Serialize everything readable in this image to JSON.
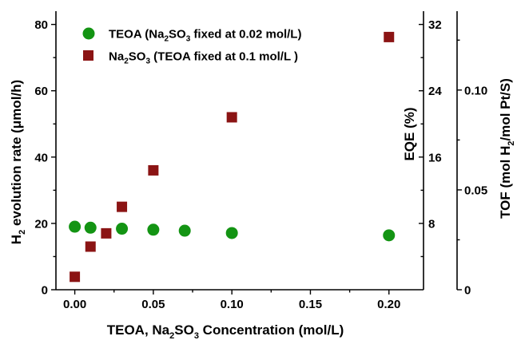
{
  "chart_data": {
    "type": "scatter",
    "xlabel": {
      "base": "TEOA, Na",
      "sub1": "2",
      "mid": "SO",
      "sub2": "3",
      "end": " Concentration (mol/L)"
    },
    "ylabel_left": {
      "base": "H",
      "sub": "2",
      "end": " evolution rate (μmol/h)"
    },
    "ylabel_right_inner": "EQE (%)",
    "ylabel_right_outer": {
      "base": "TOF (mol H",
      "sub": "2",
      "end": "/mol Pt/S)"
    },
    "xlim": [
      -0.012,
      0.222
    ],
    "ylim_left": [
      0,
      84
    ],
    "ylim_eqe": [
      0,
      33.6
    ],
    "ylim_tof": [
      0,
      0.1395
    ],
    "x_ticks": [
      "0.00",
      "0.05",
      "0.10",
      "0.15",
      "0.20"
    ],
    "x_tick_values": [
      0,
      0.05,
      0.1,
      0.15,
      0.2
    ],
    "y_left_ticks": [
      "0",
      "20",
      "40",
      "60",
      "80"
    ],
    "y_left_tick_values": [
      0,
      20,
      40,
      60,
      80
    ],
    "y_eqe_ticks": [
      "8",
      "16",
      "24",
      "32"
    ],
    "y_eqe_tick_values": [
      8,
      16,
      24,
      32
    ],
    "y_tof_ticks": [
      "0",
      "0.05",
      "0.10"
    ],
    "y_tof_tick_values": [
      0,
      0.05,
      0.1
    ],
    "legend_position": "top-left",
    "series": [
      {
        "name": {
          "base": "TEOA (Na",
          "sub1": "2",
          "mid": "SO",
          "sub2": "3",
          "end": " fixed at 0.02 mol/L)"
        },
        "marker": "circle",
        "color": "#139413",
        "x": [
          0,
          0.01,
          0.03,
          0.05,
          0.07,
          0.1,
          0.2
        ],
        "y": [
          19,
          18.7,
          18.4,
          18.1,
          17.8,
          17.1,
          16.4
        ]
      },
      {
        "name": {
          "base": "Na",
          "sub1": "2",
          "mid": "SO",
          "sub2": "3",
          "end": " (TEOA fixed at 0.1 mol/L )"
        },
        "marker": "square",
        "color": "#8b1414",
        "x": [
          0,
          0.01,
          0.02,
          0.03,
          0.05,
          0.1,
          0.2
        ],
        "y": [
          3.9,
          13,
          17,
          25,
          36,
          52,
          76.2
        ]
      }
    ]
  }
}
